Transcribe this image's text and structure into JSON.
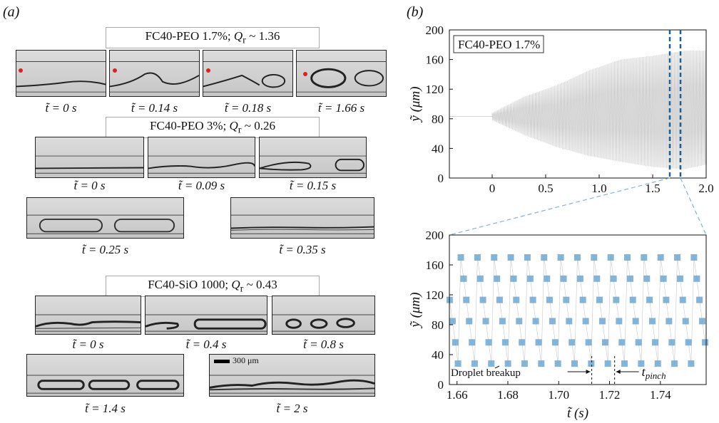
{
  "panel_a": {
    "label": "(a)",
    "groups": [
      {
        "title_prefix": "FC40-PEO 1.7%; ",
        "title_q": "Q",
        "title_sub": "r",
        "title_suffix": " ~ 1.36",
        "captions": [
          "t̃ = 0 s",
          "t̃ = 0.14 s",
          "t̃ = 0.18 s",
          "t̃ = 1.66 s"
        ]
      },
      {
        "title_prefix": "FC40-PEO 3%; ",
        "title_q": "Q",
        "title_sub": "r",
        "title_suffix": " ~ 0.26",
        "captions": [
          "t̃ = 0 s",
          "t̃ = 0.09 s",
          "t̃ = 0.15 s",
          "t̃ = 0.25 s",
          "t̃ = 0.35 s"
        ]
      },
      {
        "title_prefix": "FC40-SiO 1000; ",
        "title_q": "Q",
        "title_sub": "r",
        "title_suffix": " ~ 0.43",
        "captions": [
          "t̃ = 0 s",
          "t̃ = 0.4 s",
          "t̃ = 0.8 s",
          "t̃ = 1.4 s",
          "t̃ = 2 s"
        ]
      }
    ],
    "scalebar_label": "300 μm",
    "marker_color": "#e02020"
  },
  "panel_b": {
    "label": "(b)",
    "top_legend": "FC40-PEO 1.7%",
    "color_trace": "#bdbdbd",
    "color_marker": "#6fa8d2",
    "color_dash": "#1f5f99"
  },
  "chart_data": [
    {
      "type": "line",
      "ylabel": "ỹ (μm)",
      "xlabel": "",
      "xlim": [
        -0.4,
        2.0
      ],
      "ylim": [
        0,
        200
      ],
      "x_ticks": [
        0,
        0.5,
        1.0,
        1.5,
        2.0
      ],
      "x_tick_labels": [
        "0",
        "0.5",
        "1.0",
        "1.5",
        "2.0"
      ],
      "y_ticks": [
        0,
        40,
        80,
        120,
        160,
        200
      ],
      "y_tick_labels": [
        "0",
        "40",
        "80",
        "120",
        "160",
        "200"
      ],
      "legend": "FC40-PEO 1.7%",
      "baseline_y": 83,
      "onset_x": 0.0,
      "envelope": {
        "x": [
          0,
          0.3,
          0.6,
          0.9,
          1.2,
          1.5,
          1.8,
          2.0
        ],
        "upper": [
          88,
          110,
          125,
          145,
          160,
          165,
          172,
          172
        ],
        "lower": [
          78,
          58,
          42,
          30,
          22,
          15,
          12,
          18
        ]
      },
      "highlight_x": [
        1.66,
        1.76
      ]
    },
    {
      "type": "scatter",
      "xlabel": "t̃ (s)",
      "ylabel": "ỹ (μm)",
      "xlim": [
        1.657,
        1.758
      ],
      "ylim": [
        0,
        200
      ],
      "x_ticks": [
        1.66,
        1.68,
        1.7,
        1.72,
        1.74
      ],
      "x_tick_labels": [
        "1.66",
        "1.68",
        "1.70",
        "1.72",
        "1.74"
      ],
      "y_ticks": [
        0,
        40,
        80,
        120,
        160,
        200
      ],
      "y_tick_labels": [
        "0",
        "40",
        "80",
        "120",
        "160",
        "200"
      ],
      "period": 0.00655,
      "phase": 1.6615,
      "y_max": 170,
      "y_min": 28,
      "annotations": {
        "breakup": "Droplet breakup",
        "pinch": "t",
        "pinch_sub": "pinch"
      },
      "pinch_interval": [
        1.713,
        1.722
      ]
    }
  ]
}
